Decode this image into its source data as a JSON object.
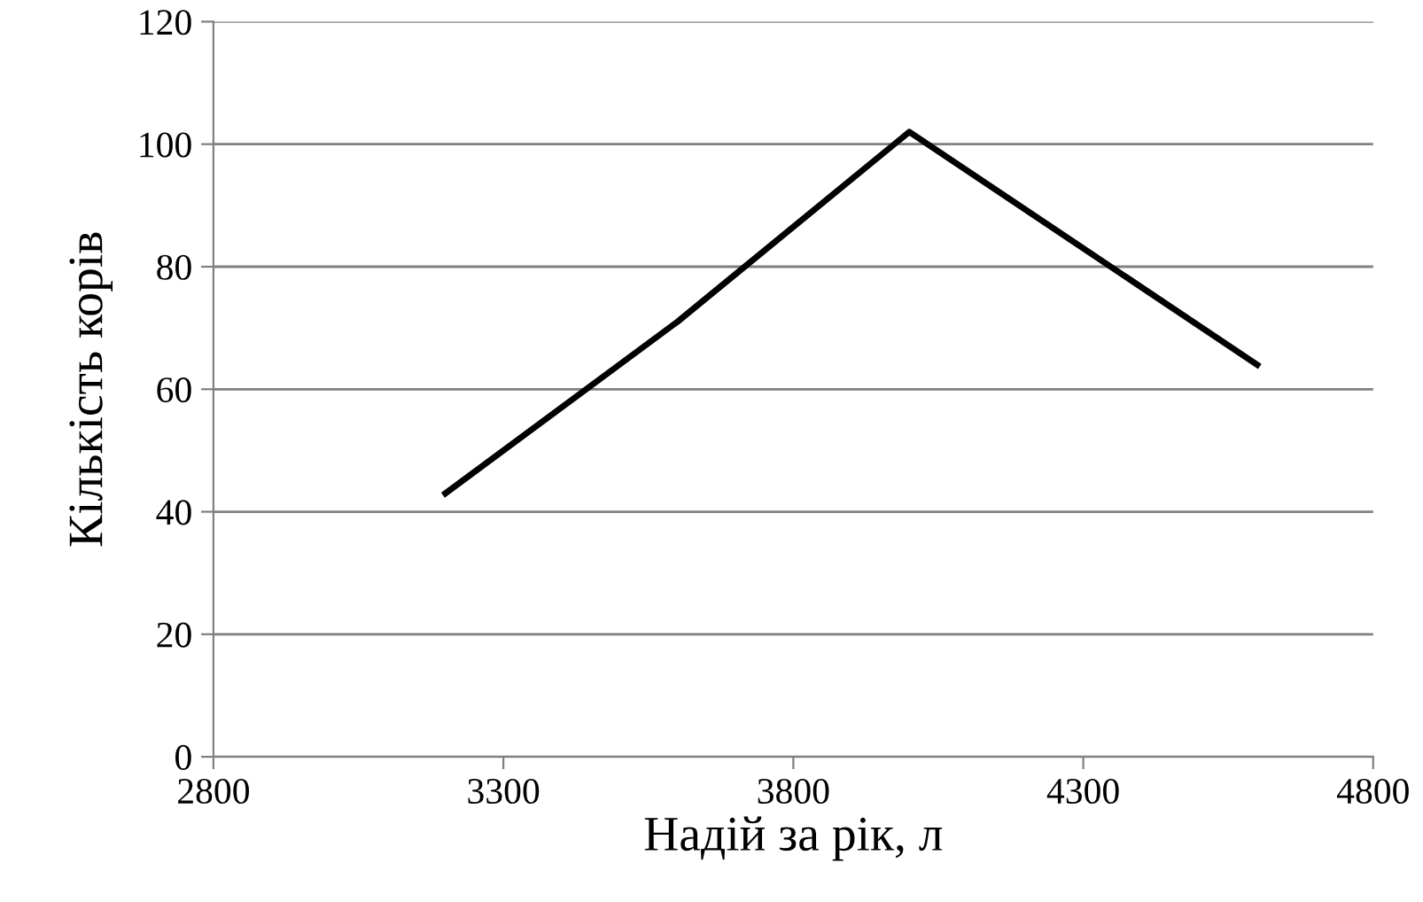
{
  "chart_data": {
    "type": "line",
    "xlabel": "Надій за рік, л",
    "ylabel": "Кількість корів",
    "x": [
      3200,
      3600,
      4000,
      4600
    ],
    "series": [
      {
        "color": "#000000",
        "values": [
          43,
          71,
          102,
          64
        ]
      }
    ],
    "xlim": [
      2800,
      4800
    ],
    "xticks": [
      2800,
      3300,
      3800,
      4300,
      4800
    ],
    "ylim": [
      0,
      120
    ],
    "yticks": [
      0,
      20,
      40,
      60,
      80,
      100,
      120
    ],
    "grid": "y",
    "marker": "none",
    "line_style": "solid"
  }
}
